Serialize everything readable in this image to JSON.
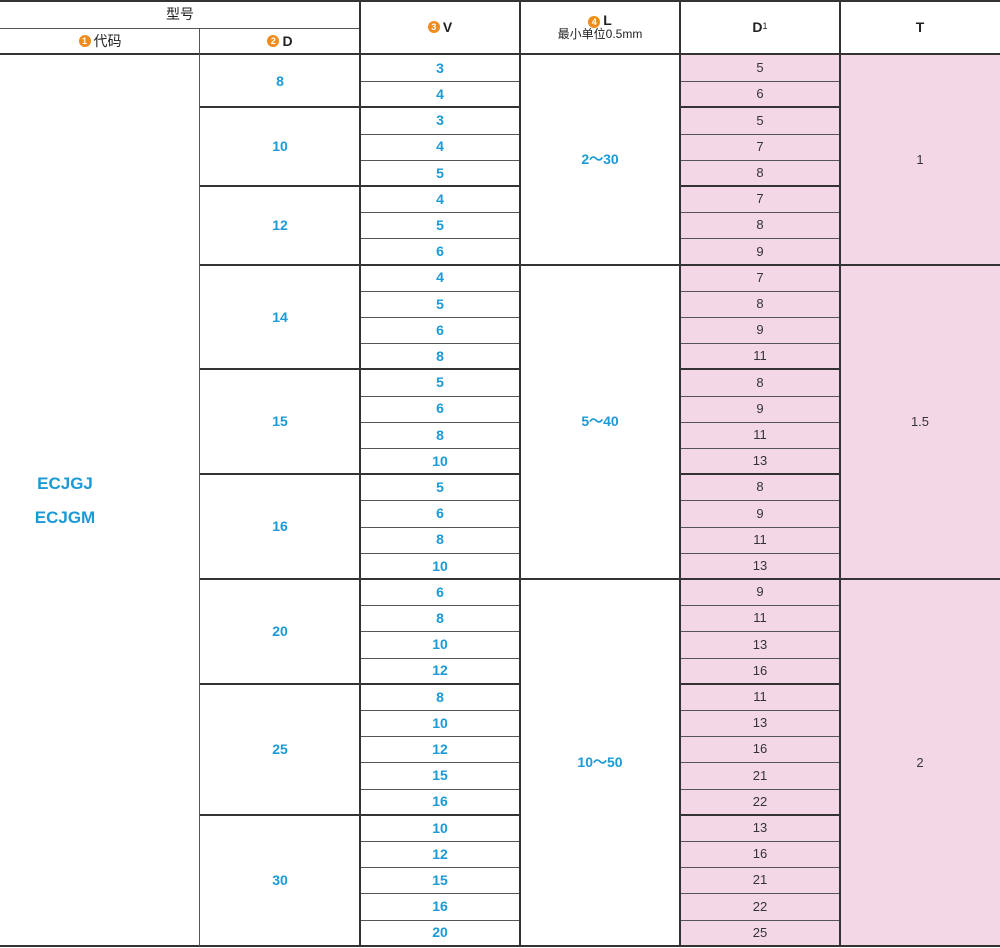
{
  "header": {
    "model": "型号",
    "code_num": "1",
    "code_label": "代码",
    "d_num": "2",
    "d_label": "D",
    "v_num": "3",
    "v_label": "V",
    "l_num": "4",
    "l_label": "L",
    "l_sub": "最小单位0.5mm",
    "d1_main": "D",
    "d1_sub": "1",
    "t_label": "T"
  },
  "codes": [
    "ECJGJ",
    "ECJGM"
  ],
  "groups": [
    {
      "D": "8",
      "rows": [
        {
          "V": "3",
          "D1": "5"
        },
        {
          "V": "4",
          "D1": "6"
        }
      ]
    },
    {
      "D": "10",
      "rows": [
        {
          "V": "3",
          "D1": "5"
        },
        {
          "V": "4",
          "D1": "7"
        },
        {
          "V": "5",
          "D1": "8"
        }
      ]
    },
    {
      "D": "12",
      "rows": [
        {
          "V": "4",
          "D1": "7"
        },
        {
          "V": "5",
          "D1": "8"
        },
        {
          "V": "6",
          "D1": "9"
        }
      ]
    },
    {
      "D": "14",
      "rows": [
        {
          "V": "4",
          "D1": "7"
        },
        {
          "V": "5",
          "D1": "8"
        },
        {
          "V": "6",
          "D1": "9"
        },
        {
          "V": "8",
          "D1": "11"
        }
      ]
    },
    {
      "D": "15",
      "rows": [
        {
          "V": "5",
          "D1": "8"
        },
        {
          "V": "6",
          "D1": "9"
        },
        {
          "V": "8",
          "D1": "11"
        },
        {
          "V": "10",
          "D1": "13"
        }
      ]
    },
    {
      "D": "16",
      "rows": [
        {
          "V": "5",
          "D1": "8"
        },
        {
          "V": "6",
          "D1": "9"
        },
        {
          "V": "8",
          "D1": "11"
        },
        {
          "V": "10",
          "D1": "13"
        }
      ]
    },
    {
      "D": "20",
      "rows": [
        {
          "V": "6",
          "D1": "9"
        },
        {
          "V": "8",
          "D1": "11"
        },
        {
          "V": "10",
          "D1": "13"
        },
        {
          "V": "12",
          "D1": "16"
        }
      ]
    },
    {
      "D": "25",
      "rows": [
        {
          "V": "8",
          "D1": "11"
        },
        {
          "V": "10",
          "D1": "13"
        },
        {
          "V": "12",
          "D1": "16"
        },
        {
          "V": "15",
          "D1": "21"
        },
        {
          "V": "16",
          "D1": "22"
        }
      ]
    },
    {
      "D": "30",
      "rows": [
        {
          "V": "10",
          "D1": "13"
        },
        {
          "V": "12",
          "D1": "16"
        },
        {
          "V": "15",
          "D1": "21"
        },
        {
          "V": "16",
          "D1": "22"
        },
        {
          "V": "20",
          "D1": "25"
        }
      ]
    }
  ],
  "L_ranges": [
    {
      "text": "2～30",
      "groups": [
        0,
        2
      ]
    },
    {
      "text": "5～40",
      "groups": [
        3,
        5
      ]
    },
    {
      "text": "10～50",
      "groups": [
        6,
        8
      ]
    }
  ],
  "T_ranges": [
    {
      "text": "1",
      "groups": [
        0,
        2
      ]
    },
    {
      "text": "1.5",
      "groups": [
        3,
        5
      ]
    },
    {
      "text": "2",
      "groups": [
        6,
        8
      ]
    }
  ]
}
